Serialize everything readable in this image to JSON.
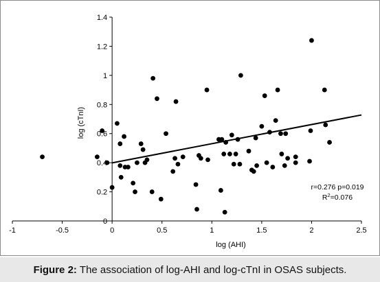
{
  "caption": {
    "label": "Figure 2:",
    "text": "The association of log-AHI and log-cTnI in OSAS subjects."
  },
  "chart_data": {
    "type": "scatter",
    "xlabel": "log (AHI)",
    "ylabel": "log (cTnI)",
    "xlim": [
      -1,
      2.5
    ],
    "ylim": [
      0,
      1.4
    ],
    "x_ticks": [
      "-1",
      "-0.5",
      "0",
      "0.5",
      "1",
      "1.5",
      "2",
      "2.5"
    ],
    "y_ticks": [
      "0",
      "0.2",
      "0.4",
      "0.6",
      "0.8",
      "1",
      "1.2",
      "1.4"
    ],
    "x_tick_values": [
      -1,
      -0.5,
      0,
      0.5,
      1,
      1.5,
      2,
      2.5
    ],
    "y_tick_values": [
      0,
      0.2,
      0.4,
      0.6,
      0.8,
      1,
      1.2,
      1.4
    ],
    "grid": false,
    "legend": "none",
    "marker_color": "#000000",
    "points": [
      [
        -0.7,
        0.44
      ],
      [
        -0.15,
        0.44
      ],
      [
        -0.1,
        0.62
      ],
      [
        -0.05,
        0.4
      ],
      [
        0.0,
        0.23
      ],
      [
        0.05,
        0.67
      ],
      [
        0.08,
        0.53
      ],
      [
        0.08,
        0.38
      ],
      [
        0.09,
        0.3
      ],
      [
        0.12,
        0.58
      ],
      [
        0.13,
        0.37
      ],
      [
        0.16,
        0.37
      ],
      [
        0.21,
        0.26
      ],
      [
        0.23,
        0.2
      ],
      [
        0.25,
        0.4
      ],
      [
        0.29,
        0.53
      ],
      [
        0.31,
        0.49
      ],
      [
        0.33,
        0.4
      ],
      [
        0.35,
        0.42
      ],
      [
        0.4,
        0.2
      ],
      [
        0.41,
        0.98
      ],
      [
        0.45,
        0.84
      ],
      [
        0.49,
        0.15
      ],
      [
        0.54,
        0.6
      ],
      [
        0.61,
        0.34
      ],
      [
        0.63,
        0.43
      ],
      [
        0.64,
        0.82
      ],
      [
        0.66,
        0.39
      ],
      [
        0.71,
        0.44
      ],
      [
        0.84,
        0.25
      ],
      [
        0.85,
        0.08
      ],
      [
        0.87,
        0.45
      ],
      [
        0.89,
        0.43
      ],
      [
        0.95,
        0.9
      ],
      [
        0.96,
        0.42
      ],
      [
        1.07,
        0.56
      ],
      [
        1.09,
        0.21
      ],
      [
        1.1,
        0.56
      ],
      [
        1.12,
        0.46
      ],
      [
        1.13,
        0.06
      ],
      [
        1.14,
        0.54
      ],
      [
        1.18,
        0.46
      ],
      [
        1.2,
        0.59
      ],
      [
        1.22,
        0.39
      ],
      [
        1.24,
        0.46
      ],
      [
        1.26,
        0.56
      ],
      [
        1.28,
        0.39
      ],
      [
        1.29,
        1.0
      ],
      [
        1.37,
        0.48
      ],
      [
        1.4,
        0.35
      ],
      [
        1.42,
        0.34
      ],
      [
        1.44,
        0.57
      ],
      [
        1.45,
        0.38
      ],
      [
        1.5,
        0.65
      ],
      [
        1.53,
        0.86
      ],
      [
        1.55,
        0.4
      ],
      [
        1.58,
        0.61
      ],
      [
        1.61,
        0.37
      ],
      [
        1.64,
        0.69
      ],
      [
        1.66,
        0.9
      ],
      [
        1.69,
        0.6
      ],
      [
        1.7,
        0.46
      ],
      [
        1.73,
        0.38
      ],
      [
        1.74,
        0.6
      ],
      [
        1.76,
        0.43
      ],
      [
        1.84,
        0.4
      ],
      [
        1.84,
        0.44
      ],
      [
        1.98,
        0.41
      ],
      [
        1.99,
        0.62
      ],
      [
        2.0,
        1.24
      ],
      [
        2.13,
        0.9
      ],
      [
        2.14,
        0.66
      ],
      [
        2.18,
        0.54
      ]
    ],
    "trendline": {
      "x": [
        0,
        2.5
      ],
      "y": [
        0.399,
        0.728
      ]
    },
    "annotations": {
      "stat_line1": "r=0.276 p=0.019",
      "r2_prefix": "R",
      "r2_exp": "2",
      "r2_value": "=0.076"
    }
  }
}
